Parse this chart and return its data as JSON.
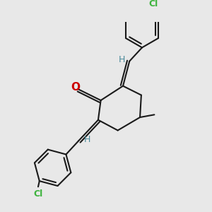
{
  "background_color": "#e8e8e8",
  "bond_color": "#1a1a1a",
  "atom_colors": {
    "O": "#cc0000",
    "Cl": "#3db33d",
    "H": "#4a8a9a"
  },
  "line_width": 1.5,
  "figsize": [
    3.0,
    3.0
  ],
  "dpi": 100,
  "xlim": [
    -2.8,
    3.2
  ],
  "ylim": [
    -4.2,
    3.0
  ]
}
